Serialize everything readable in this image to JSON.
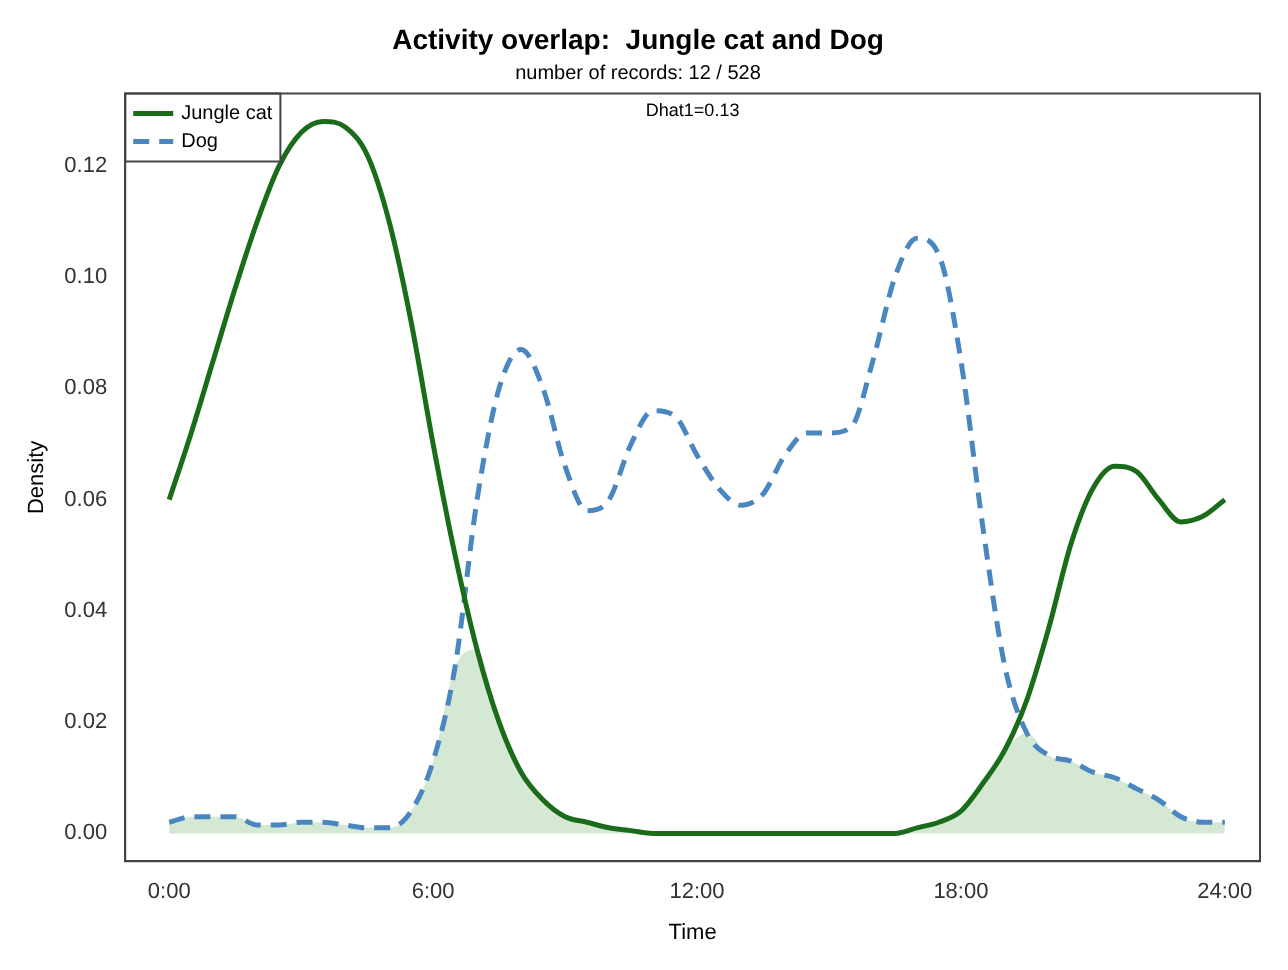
{
  "chart_data": {
    "type": "line",
    "title": "Activity overlap:  Jungle cat and Dog",
    "subtitle": "number of records: 12 / 528",
    "xlabel": "Time",
    "ylabel": "Density",
    "annotations": [
      "Dhat1=0.13"
    ],
    "x": [
      0,
      0.5,
      1,
      1.5,
      2,
      2.5,
      3,
      3.5,
      4,
      4.5,
      5,
      5.5,
      6,
      6.5,
      7,
      7.5,
      8,
      8.5,
      9,
      9.5,
      10,
      10.5,
      11,
      11.5,
      12,
      12.5,
      13,
      13.5,
      14,
      14.5,
      15,
      15.5,
      16,
      16.5,
      17,
      17.5,
      18,
      18.5,
      19,
      19.5,
      20,
      20.5,
      21,
      21.5,
      22,
      22.5,
      23,
      23.5,
      24
    ],
    "series": [
      {
        "type": "area",
        "color": "#d5e8d4",
        "values": [
          0.002,
          0.003,
          0.003,
          0.003,
          0.0015,
          0.0015,
          0.002,
          0.002,
          0.0015,
          0.001,
          0.001,
          0.004,
          0.013,
          0.03,
          0.033,
          0.02,
          0.011,
          0.006,
          0.003,
          0.002,
          0.001,
          0.0005,
          0,
          0,
          0,
          0,
          0,
          0,
          0,
          0,
          0,
          0,
          0,
          0,
          0.001,
          0.002,
          0.004,
          0.009,
          0.015,
          0.018,
          0.014,
          0.013,
          0.011,
          0.01,
          0.008,
          0.006,
          0.003,
          0.002,
          0.002
        ]
      },
      {
        "name": "Jungle cat",
        "color": "#1a6b1a",
        "line_style": "solid",
        "values": [
          0.06,
          0.072,
          0.085,
          0.098,
          0.11,
          0.12,
          0.126,
          0.128,
          0.127,
          0.122,
          0.11,
          0.092,
          0.07,
          0.05,
          0.033,
          0.02,
          0.011,
          0.006,
          0.003,
          0.002,
          0.001,
          0.0005,
          0,
          0,
          0,
          0,
          0,
          0,
          0,
          0,
          0,
          0,
          0,
          0,
          0.001,
          0.002,
          0.004,
          0.009,
          0.015,
          0.024,
          0.037,
          0.052,
          0.062,
          0.066,
          0.065,
          0.06,
          0.056,
          0.057,
          0.06
        ]
      },
      {
        "name": "Dog",
        "color": "#4a86c0",
        "line_style": "dashed",
        "values": [
          0.002,
          0.003,
          0.003,
          0.003,
          0.0015,
          0.0015,
          0.002,
          0.002,
          0.0015,
          0.001,
          0.001,
          0.004,
          0.013,
          0.03,
          0.06,
          0.08,
          0.087,
          0.08,
          0.066,
          0.058,
          0.06,
          0.07,
          0.076,
          0.075,
          0.068,
          0.062,
          0.059,
          0.061,
          0.068,
          0.072,
          0.072,
          0.073,
          0.085,
          0.1,
          0.107,
          0.104,
          0.085,
          0.055,
          0.03,
          0.018,
          0.014,
          0.013,
          0.011,
          0.01,
          0.008,
          0.006,
          0.003,
          0.002,
          0.002
        ]
      }
    ],
    "xlim": [
      -1,
      24.8
    ],
    "xticks": [
      {
        "value": 0,
        "label": "0:00"
      },
      {
        "value": 6,
        "label": "6:00"
      },
      {
        "value": 12,
        "label": "12:00"
      },
      {
        "value": 18,
        "label": "18:00"
      },
      {
        "value": 24,
        "label": "24:00"
      }
    ],
    "ylim": [
      -0.005,
      0.133
    ],
    "yticks": [
      {
        "value": 0,
        "label": "0.00"
      },
      {
        "value": 0.02,
        "label": "0.02"
      },
      {
        "value": 0.04,
        "label": "0.04"
      },
      {
        "value": 0.06,
        "label": "0.06"
      },
      {
        "value": 0.08,
        "label": "0.08"
      },
      {
        "value": 0.1,
        "label": "0.10"
      },
      {
        "value": 0.12,
        "label": "0.12"
      }
    ],
    "grid": false,
    "legend": "top left",
    "marker": "none"
  }
}
